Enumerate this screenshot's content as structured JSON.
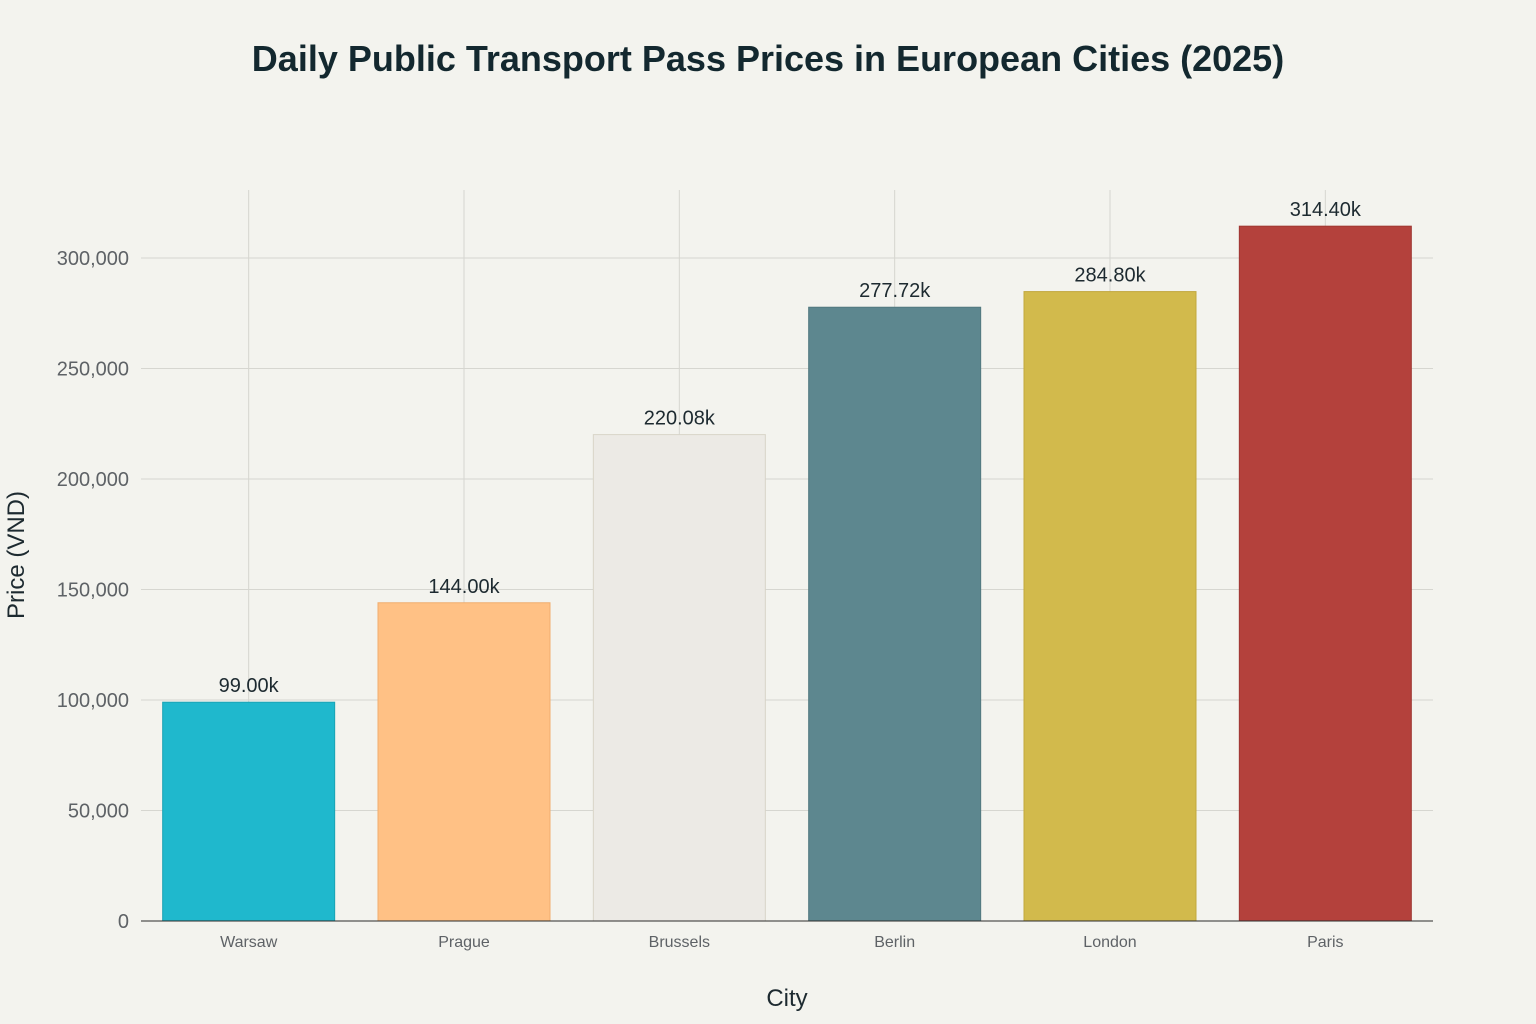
{
  "chart_data": {
    "type": "bar",
    "title": "Daily Public Transport Pass Prices in European Cities (2025)",
    "xlabel": "City",
    "ylabel": "Price (VND)",
    "categories": [
      "Warsaw",
      "Prague",
      "Brussels",
      "Berlin",
      "London",
      "Paris"
    ],
    "values": [
      99000,
      144000,
      220080,
      277720,
      284800,
      314400
    ],
    "data_labels": [
      "99.00k",
      "144.00k",
      "220.08k",
      "277.72k",
      "284.80k",
      "314.40k"
    ],
    "colors": [
      "#1fb8cd",
      "#ffc185",
      "#eceae5",
      "#5d878f",
      "#d2ba4c",
      "#b4413c"
    ],
    "border_colors": [
      "#1aa3b5",
      "#f0ad6e",
      "#d8d4c8",
      "#52797f",
      "#c1a83d",
      "#9e3632"
    ],
    "ylim": [
      0,
      330000
    ],
    "yticks": [
      0,
      50000,
      100000,
      150000,
      200000,
      250000,
      300000
    ],
    "ytick_labels": [
      "0",
      "50,000",
      "100,000",
      "150,000",
      "200,000",
      "250,000",
      "300,000"
    ],
    "grid": true,
    "legend": "none"
  }
}
